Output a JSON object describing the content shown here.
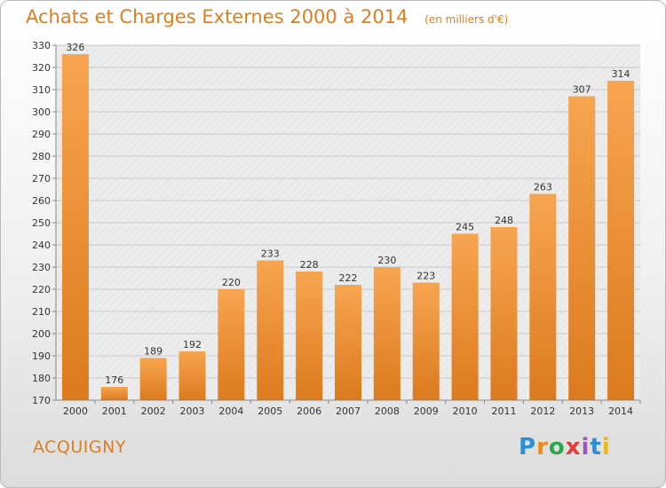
{
  "chart_data": {
    "type": "bar",
    "title": "Achats et Charges Externes 2000 à 2014",
    "subtitle": "(en milliers d'€)",
    "categories": [
      "2000",
      "2001",
      "2002",
      "2003",
      "2004",
      "2005",
      "2006",
      "2007",
      "2008",
      "2009",
      "2010",
      "2011",
      "2012",
      "2013",
      "2014"
    ],
    "values": [
      326,
      176,
      189,
      192,
      220,
      233,
      228,
      222,
      230,
      223,
      245,
      248,
      263,
      307,
      314
    ],
    "ylim": [
      170,
      330
    ],
    "yticks": [
      170,
      180,
      190,
      200,
      210,
      220,
      230,
      240,
      250,
      260,
      270,
      280,
      290,
      300,
      310,
      320,
      330
    ],
    "xlabel": "",
    "ylabel": "",
    "grid": true,
    "colors": {
      "bar": "#f0943a",
      "text": "#e07e1e"
    }
  },
  "commune": "ACQUIGNY",
  "logo": [
    "P",
    "r",
    "o",
    "x",
    "i",
    "t",
    "i"
  ]
}
